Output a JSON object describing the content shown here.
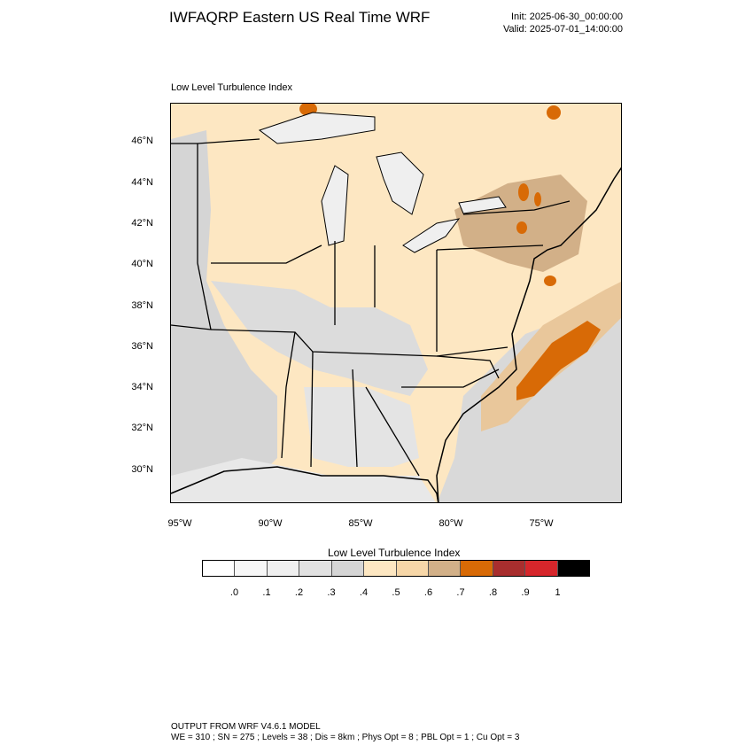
{
  "header": {
    "title": "IWFAQRP Eastern US Real Time WRF",
    "init": "Init: 2025-06-30_00:00:00",
    "valid": "Valid: 2025-07-01_14:00:00"
  },
  "map": {
    "label": "Low Level Turbulence Index",
    "lat_labels": [
      "46°N",
      "44°N",
      "42°N",
      "40°N",
      "38°N",
      "36°N",
      "34°N",
      "32°N",
      "30°N"
    ],
    "lon_labels": [
      "95°W",
      "90°W",
      "85°W",
      "80°W",
      "75°W"
    ]
  },
  "colorbar": {
    "title": "Low Level Turbulence Index",
    "labels": [
      ".0",
      ".1",
      ".2",
      ".3",
      ".4",
      ".5",
      ".6",
      ".7",
      ".8",
      ".9",
      "1"
    ],
    "colors": [
      "#ffffff",
      "#f7f7f7",
      "#efefef",
      "#e1e1e1",
      "#d5d5d5",
      "#fde7c2",
      "#f7d7a8",
      "#d2b088",
      "#d86a06",
      "#a82e2e",
      "#d6262b",
      "#000000"
    ]
  },
  "footer": {
    "line1": "OUTPUT FROM WRF V4.6.1 MODEL",
    "line2": "WE = 310 ; SN = 275 ; Levels = 38 ; Dis = 8km ; Phys Opt = 8 ; PBL Opt = 1 ; Cu Opt = 3"
  }
}
